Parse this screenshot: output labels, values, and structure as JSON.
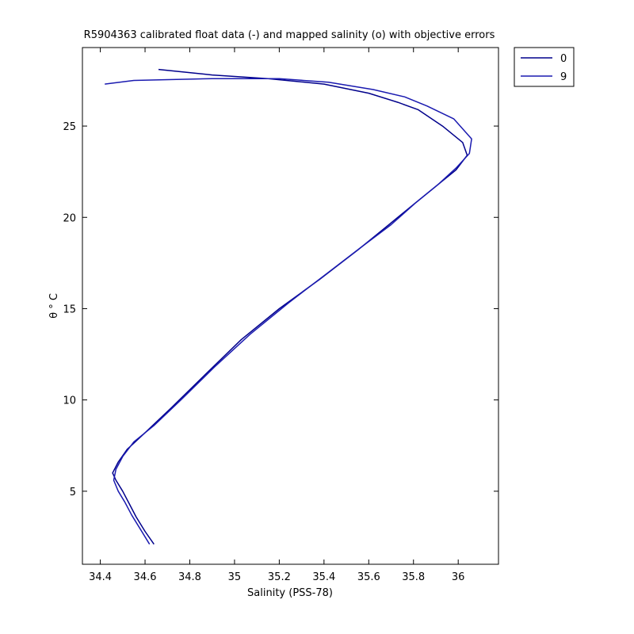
{
  "chart_data": {
    "type": "line",
    "title": "R5904363 calibrated float data (-) and mapped salinity (o) with objective errors",
    "xlabel": "Salinity (PSS-78)",
    "ylabel": "θ ° C",
    "xlim": [
      34.32,
      36.18
    ],
    "ylim": [
      1.0,
      29.3
    ],
    "xticks": [
      34.4,
      34.6,
      34.8,
      35.0,
      35.2,
      35.4,
      35.6,
      35.8,
      36.0
    ],
    "xtick_labels": [
      "34.4",
      "34.6",
      "34.8",
      "35",
      "35.2",
      "35.4",
      "35.6",
      "35.8",
      "36"
    ],
    "yticks": [
      5,
      10,
      15,
      20,
      25
    ],
    "ytick_labels": [
      "5",
      "10",
      "15",
      "20",
      "25"
    ],
    "grid": false,
    "legend_position": "outside-top-right",
    "colors": {
      "series_a": "#00008b",
      "series_b": "#1a1ab0",
      "axis": "#000000"
    },
    "series": [
      {
        "name": "0",
        "color": "#00008b",
        "x": [
          34.64,
          34.6,
          34.56,
          34.53,
          34.5,
          34.47,
          34.455,
          34.48,
          34.52,
          34.6,
          34.72,
          34.87,
          35.03,
          35.2,
          35.38,
          35.55,
          35.68,
          35.8,
          35.9,
          35.99,
          36.04,
          36.02,
          35.93,
          35.82,
          35.73,
          35.6,
          35.4,
          35.15,
          34.9,
          34.66
        ],
        "y": [
          2.1,
          2.8,
          3.6,
          4.3,
          5.0,
          5.6,
          6.0,
          6.6,
          7.3,
          8.2,
          9.6,
          11.4,
          13.3,
          15.0,
          16.6,
          18.2,
          19.5,
          20.7,
          21.7,
          22.6,
          23.4,
          24.1,
          25.0,
          25.9,
          26.3,
          26.8,
          27.3,
          27.6,
          27.8,
          28.1
        ]
      },
      {
        "name": "9",
        "color": "#1a1ab0",
        "x": [
          34.62,
          34.58,
          34.54,
          34.51,
          34.48,
          34.46,
          34.47,
          34.5,
          34.55,
          34.64,
          34.76,
          34.91,
          35.07,
          35.24,
          35.41,
          35.57,
          35.7,
          35.81,
          35.91,
          35.99,
          36.05,
          36.06,
          35.98,
          35.86,
          35.76,
          35.62,
          35.42,
          35.2,
          34.9,
          34.55,
          34.42
        ],
        "y": [
          2.1,
          2.9,
          3.7,
          4.4,
          5.0,
          5.6,
          6.2,
          6.9,
          7.7,
          8.6,
          10.0,
          11.8,
          13.6,
          15.3,
          16.9,
          18.4,
          19.6,
          20.8,
          21.8,
          22.7,
          23.5,
          24.3,
          25.4,
          26.1,
          26.6,
          27.0,
          27.4,
          27.6,
          27.6,
          27.5,
          27.3
        ]
      }
    ]
  }
}
